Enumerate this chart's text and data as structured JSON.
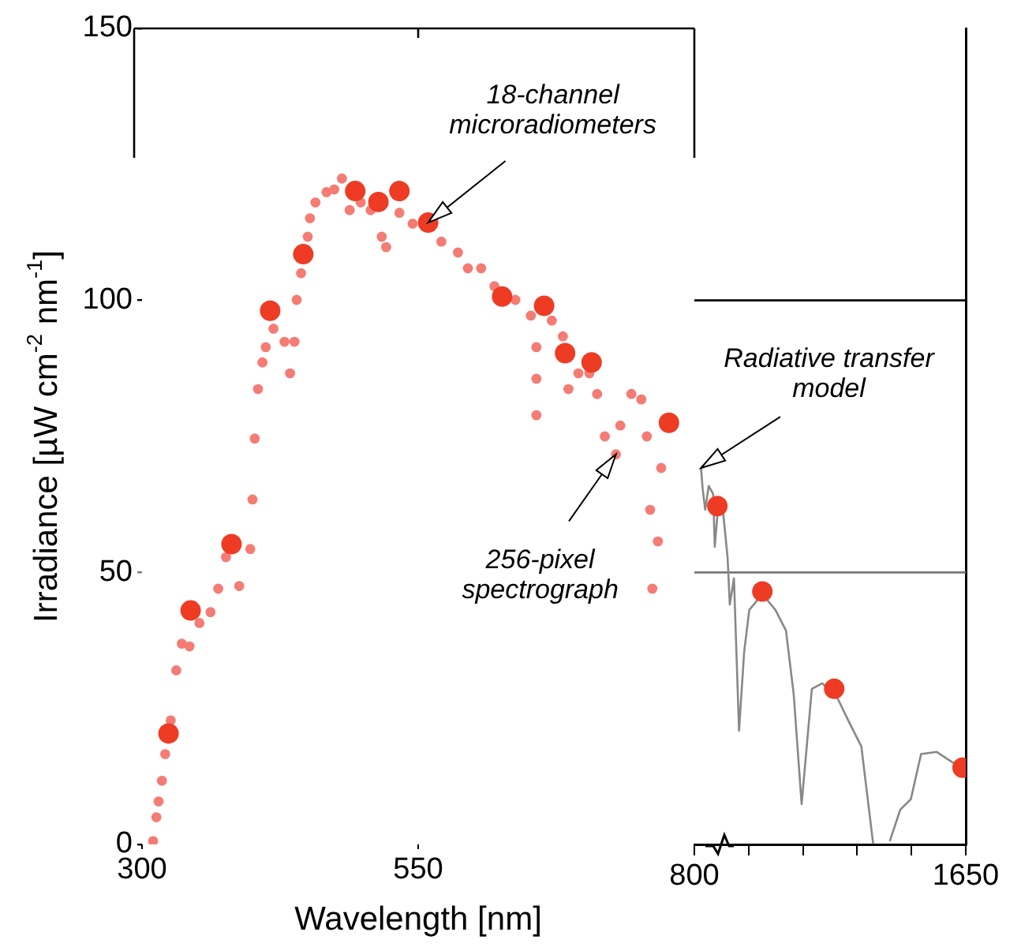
{
  "chart_data": [
    {
      "type": "scatter",
      "xlabel": "Wavelength [nm]",
      "ylabel": "Irradiance [µW cm$^{-2}$ nm$^{-1}$]",
      "xlim": [
        300,
        800
      ],
      "xticks": [
        300,
        550,
        {
          "value": 800,
          "label": null
        }
      ],
      "ylim": [
        0,
        150
      ],
      "yticks": [
        0,
        50,
        100,
        150
      ],
      "grid": false,
      "marker": "circle",
      "annotations": [
        {
          "text": "18-channel microradiometers",
          "x": 559,
          "y": 114.3
        },
        {
          "text": "256-pixel spectrograph",
          "x": 729,
          "y": 71.7
        }
      ],
      "series": [
        {
          "color": "#f47c74",
          "x": [
            310,
            313,
            315,
            318,
            321,
            326,
            331,
            336,
            343,
            352,
            362,
            369,
            376,
            388,
            398,
            400,
            402,
            405,
            409,
            412,
            419,
            429,
            434,
            438,
            440,
            444,
            450,
            452,
            457,
            467,
            474,
            481,
            488,
            498,
            507,
            517,
            521,
            533,
            545,
            571,
            586,
            595,
            607,
            619,
            638,
            652,
            657,
            657,
            657,
            671,
            681,
            686,
            695,
            705,
            712,
            719,
            729,
            733,
            743,
            752,
            757,
            760,
            762,
            767,
            770
          ],
          "values": [
            0.6,
            5.0,
            7.9,
            11.7,
            16.6,
            22.8,
            32.0,
            36.9,
            36.4,
            40.7,
            42.7,
            47.0,
            52.8,
            47.5,
            54.3,
            63.4,
            74.6,
            83.7,
            88.6,
            91.4,
            94.8,
            92.4,
            86.6,
            92.4,
            100.1,
            105.0,
            111.7,
            115.1,
            118.0,
            119.9,
            120.4,
            122.4,
            116.6,
            118.0,
            116.6,
            111.7,
            109.8,
            116.1,
            114.1,
            110.8,
            108.8,
            105.9,
            105.9,
            102.6,
            100.1,
            97.2,
            91.4,
            85.6,
            78.9,
            96.3,
            93.4,
            83.7,
            86.6,
            86.6,
            82.8,
            75.0,
            71.7,
            77.0,
            82.8,
            81.8,
            75.0,
            61.5,
            47.0,
            55.7,
            69.2
          ]
        },
        {
          "color": "#ee3b24",
          "x": [
            324,
            344,
            381,
            416,
            446,
            493,
            514,
            533,
            559,
            626,
            664,
            683,
            707,
            777
          ],
          "values": [
            20.4,
            43.0,
            55.2,
            98.1,
            108.5,
            120.1,
            118.1,
            120.1,
            114.3,
            100.7,
            99.0,
            90.3,
            88.6,
            77.5
          ]
        }
      ]
    },
    {
      "type": "scatter",
      "xlim": [
        800,
        1650
      ],
      "xticks": [
        800,
        {
          "value": 970,
          "label": null
        },
        {
          "value": 1140,
          "label": null
        },
        {
          "value": 1310,
          "label": null
        },
        {
          "value": 1480,
          "label": null
        },
        1650
      ],
      "ylim": [
        0,
        150
      ],
      "yticks": [
        0,
        50,
        100
      ],
      "tick_labels": "x",
      "ref_lines": [
        {
          "axis": "y",
          "value": 100,
          "color": "#000000"
        },
        {
          "axis": "y",
          "value": 50,
          "color": "#777777"
        }
      ],
      "annotations": [
        {
          "text": "Radiative transfer model",
          "x": 821,
          "y": 69.2
        }
      ],
      "series": [
        {
          "type": "line",
          "color": "#888888",
          "x": [
            821,
            826,
            834,
            845,
            859,
            864,
            875,
            891,
            904,
            911,
            924,
            940,
            956,
            972,
            1013,
            1054,
            1087,
            1111,
            1136,
            1152,
            1168,
            1201,
            1250,
            1282,
            1323,
            1347,
            1360,
            1385,
            1412,
            1445,
            1478,
            1510,
            1559,
            1608,
            1640
          ],
          "values": [
            69.2,
            65.4,
            61.5,
            65.9,
            64.4,
            54.7,
            62.5,
            60.5,
            52.8,
            44.1,
            48.9,
            20.9,
            35.4,
            43.1,
            46.0,
            43.1,
            39.3,
            27.7,
            7.4,
            18.0,
            28.6,
            29.6,
            26.7,
            22.8,
            18.0,
            6.4,
            0.1,
            null,
            0.6,
            6.4,
            8.3,
            16.6,
            17.0,
            15.1,
            14.1
          ]
        },
        {
          "color": "#ee3b24",
          "x": [
            872,
            1013,
            1238,
            1640
          ],
          "values": [
            62.2,
            46.5,
            28.6,
            14.1
          ]
        }
      ]
    }
  ]
}
